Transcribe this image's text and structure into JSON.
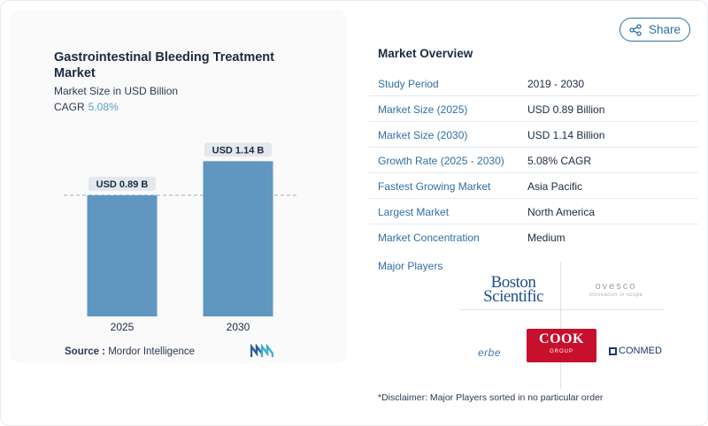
{
  "share": {
    "label": "Share",
    "icon": "share-icon"
  },
  "chart": {
    "title": "Gastrointestinal Bleeding Treatment Market",
    "subtitle": "Market Size in USD Billion",
    "cagr_label": "CAGR",
    "cagr_value": "5.08%"
  },
  "chart_data": {
    "type": "bar",
    "title": "Gastrointestinal Bleeding Treatment Market",
    "subtitle": "Market Size in USD Billion",
    "categories": [
      "2025",
      "2030"
    ],
    "values": [
      0.89,
      1.14
    ],
    "data_labels": [
      "USD 0.89 B",
      "USD 1.14 B"
    ],
    "xlabel": "",
    "ylabel": "",
    "ylim": [
      0,
      1.35
    ],
    "grid": false,
    "bar_color": "#5f97c0",
    "reference_line": "dashed line at first bar value"
  },
  "source": {
    "label": "Source :",
    "value": "Mordor Intelligence"
  },
  "overview": {
    "title": "Market Overview",
    "rows": [
      {
        "key": "Study Period",
        "value": "2019 - 2030"
      },
      {
        "key": "Market Size (2025)",
        "value": "USD 0.89 Billion"
      },
      {
        "key": "Market Size (2030)",
        "value": "USD 1.14 Billion"
      },
      {
        "key": "Growth Rate (2025 - 2030)",
        "value": "5.08% CAGR"
      },
      {
        "key": "Fastest Growing Market",
        "value": "Asia Pacific"
      },
      {
        "key": "Largest Market",
        "value": "North America"
      },
      {
        "key": "Market Concentration",
        "value": "Medium"
      }
    ],
    "major_players_label": "Major Players"
  },
  "players": {
    "boston_line1": "Boston",
    "boston_line2": "Scientific",
    "ovesco": "ovesco",
    "ovesco_tag": "innovation in scope",
    "erbe": "erbe",
    "cook": "COOK",
    "cook_group": "GROUP",
    "conmed": "CONMED"
  },
  "disclaimer": "*Disclaimer: Major Players sorted in no particular order",
  "colors": {
    "accent": "#2f6fa6",
    "bar": "#5f97c0",
    "cook_red": "#c8102e"
  }
}
